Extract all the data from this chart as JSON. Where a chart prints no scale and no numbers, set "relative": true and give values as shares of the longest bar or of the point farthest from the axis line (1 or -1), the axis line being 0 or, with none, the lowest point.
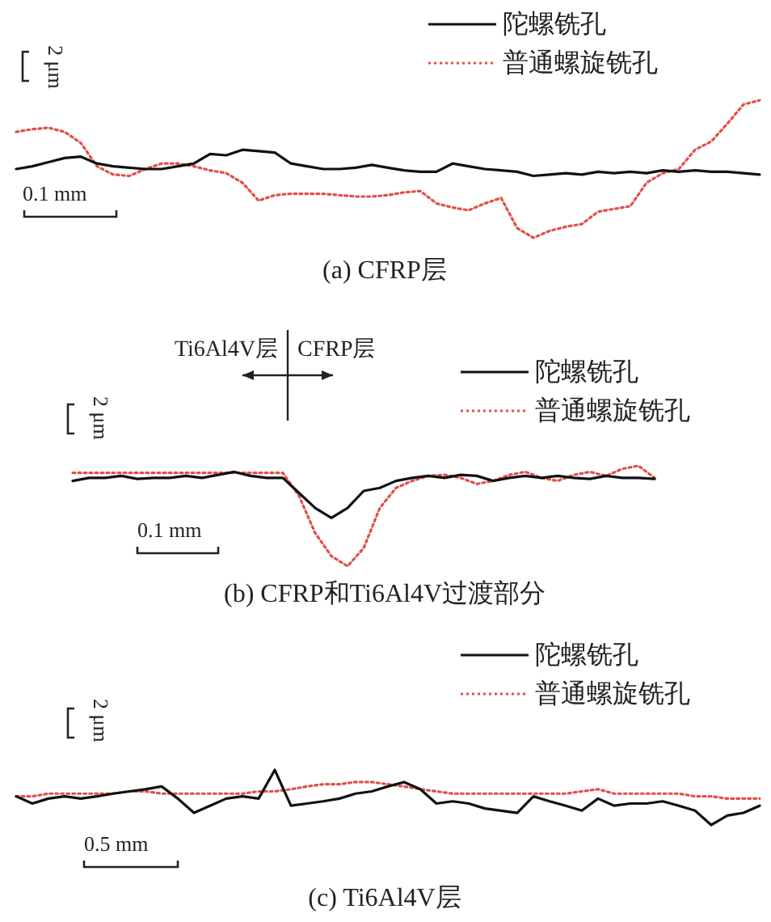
{
  "chart_data": [
    {
      "type": "line",
      "title": "(a) CFRP层",
      "relative": true,
      "legend": "top right",
      "categories": [
        null,
        null,
        null,
        null,
        null,
        null,
        null,
        null,
        null,
        null,
        null,
        null,
        null,
        null,
        null,
        null,
        null,
        null,
        null,
        null,
        null,
        null,
        null,
        null,
        null,
        null,
        null,
        null,
        null,
        null,
        null,
        null,
        null,
        null,
        null,
        null,
        null,
        null,
        null,
        null,
        null,
        null,
        null,
        null,
        null,
        null,
        null
      ],
      "series": [
        {
          "name": "陀螺铣孔",
          "color": "#111111",
          "line_style": "solid",
          "values": [
            0.5,
            0.52,
            0.55,
            0.58,
            0.59,
            0.54,
            0.52,
            0.51,
            0.5,
            0.5,
            0.52,
            0.54,
            0.61,
            0.6,
            0.64,
            0.63,
            0.62,
            0.54,
            0.52,
            0.5,
            0.5,
            0.51,
            0.53,
            0.51,
            0.49,
            0.48,
            0.48,
            0.54,
            0.52,
            0.5,
            0.49,
            0.48,
            0.45,
            0.46,
            0.47,
            0.46,
            0.48,
            0.47,
            0.48,
            0.47,
            0.49,
            0.48,
            0.49,
            0.48,
            0.48,
            0.47,
            0.46
          ]
        },
        {
          "name": "普通螺旋铣孔",
          "color": "#e0504a",
          "line_style": "dotted",
          "values": [
            0.77,
            0.79,
            0.8,
            0.77,
            0.69,
            0.52,
            0.46,
            0.45,
            0.5,
            0.54,
            0.54,
            0.52,
            0.49,
            0.47,
            0.4,
            0.27,
            0.31,
            0.32,
            0.32,
            0.32,
            0.31,
            0.3,
            0.3,
            0.31,
            0.33,
            0.34,
            0.25,
            0.22,
            0.2,
            0.25,
            0.29,
            0.07,
            0.0,
            0.05,
            0.08,
            0.1,
            0.19,
            0.21,
            0.23,
            0.4,
            0.47,
            0.5,
            0.64,
            0.7,
            0.83,
            0.97,
            1.0
          ]
        }
      ],
      "annotations": [
        "2 μm",
        "0.1 mm"
      ]
    },
    {
      "type": "line",
      "title": "(b) CFRP和Ti6Al4V过渡部分",
      "relative": true,
      "legend": "top right",
      "categories": [
        null,
        null,
        null,
        null,
        null,
        null,
        null,
        null,
        null,
        null,
        null,
        null,
        null,
        null,
        null,
        null,
        null,
        null,
        null,
        null,
        null,
        null,
        null,
        null,
        null,
        null,
        null,
        null,
        null,
        null,
        null,
        null,
        null,
        null,
        null,
        null,
        null
      ],
      "series": [
        {
          "name": "陀螺铣孔",
          "color": "#111111",
          "line_style": "solid",
          "values": [
            0.85,
            0.88,
            0.88,
            0.9,
            0.87,
            0.88,
            0.88,
            0.9,
            0.88,
            0.91,
            0.94,
            0.9,
            0.88,
            0.88,
            0.73,
            0.58,
            0.48,
            0.58,
            0.75,
            0.78,
            0.85,
            0.88,
            0.9,
            0.88,
            0.91,
            0.9,
            0.85,
            0.88,
            0.9,
            0.88,
            0.9,
            0.88,
            0.87,
            0.9,
            0.88,
            0.88,
            0.87
          ]
        },
        {
          "name": "普通螺旋铣孔",
          "color": "#e0504a",
          "line_style": "dotted",
          "values": [
            0.93,
            0.93,
            0.93,
            0.93,
            0.93,
            0.93,
            0.93,
            0.93,
            0.93,
            0.93,
            0.93,
            0.93,
            0.93,
            0.93,
            0.7,
            0.33,
            0.1,
            0.0,
            0.18,
            0.58,
            0.78,
            0.85,
            0.9,
            0.91,
            0.88,
            0.82,
            0.85,
            0.91,
            0.94,
            0.88,
            0.85,
            0.91,
            0.94,
            0.9,
            0.97,
            1.0,
            0.88
          ]
        }
      ],
      "annotations": [
        "Ti6Al4V层",
        "CFRP层",
        "2 μm",
        "0.1 mm"
      ]
    },
    {
      "type": "line",
      "title": "(c) Ti6Al4V层",
      "relative": true,
      "legend": "top right",
      "categories": [
        null,
        null,
        null,
        null,
        null,
        null,
        null,
        null,
        null,
        null,
        null,
        null,
        null,
        null,
        null,
        null,
        null,
        null,
        null,
        null,
        null,
        null,
        null,
        null,
        null,
        null,
        null,
        null,
        null,
        null,
        null,
        null,
        null,
        null,
        null,
        null,
        null,
        null,
        null,
        null,
        null,
        null,
        null,
        null,
        null,
        null,
        null
      ],
      "series": [
        {
          "name": "陀螺铣孔",
          "color": "#111111",
          "line_style": "solid",
          "values": [
            0.52,
            0.39,
            0.48,
            0.52,
            0.48,
            0.52,
            0.57,
            0.61,
            0.65,
            0.7,
            0.48,
            0.22,
            0.35,
            0.48,
            0.52,
            0.48,
            1.0,
            0.35,
            0.39,
            0.43,
            0.48,
            0.57,
            0.61,
            0.7,
            0.78,
            0.65,
            0.39,
            0.43,
            0.39,
            0.3,
            0.26,
            0.22,
            0.52,
            0.43,
            0.35,
            0.26,
            0.48,
            0.35,
            0.39,
            0.39,
            0.43,
            0.35,
            0.26,
            0.0,
            0.17,
            0.22,
            0.35
          ]
        },
        {
          "name": "普通螺旋铣孔",
          "color": "#e0504a",
          "line_style": "dotted",
          "values": [
            0.52,
            0.52,
            0.57,
            0.57,
            0.57,
            0.57,
            0.57,
            0.61,
            0.61,
            0.57,
            0.57,
            0.57,
            0.57,
            0.57,
            0.57,
            0.61,
            0.61,
            0.65,
            0.7,
            0.74,
            0.74,
            0.78,
            0.78,
            0.74,
            0.7,
            0.65,
            0.61,
            0.57,
            0.57,
            0.57,
            0.57,
            0.57,
            0.57,
            0.57,
            0.57,
            0.61,
            0.65,
            0.57,
            0.57,
            0.57,
            0.57,
            0.57,
            0.52,
            0.52,
            0.48,
            0.48,
            0.48
          ]
        }
      ],
      "annotations": [
        "2 μm",
        "0.5 mm"
      ]
    }
  ]
}
